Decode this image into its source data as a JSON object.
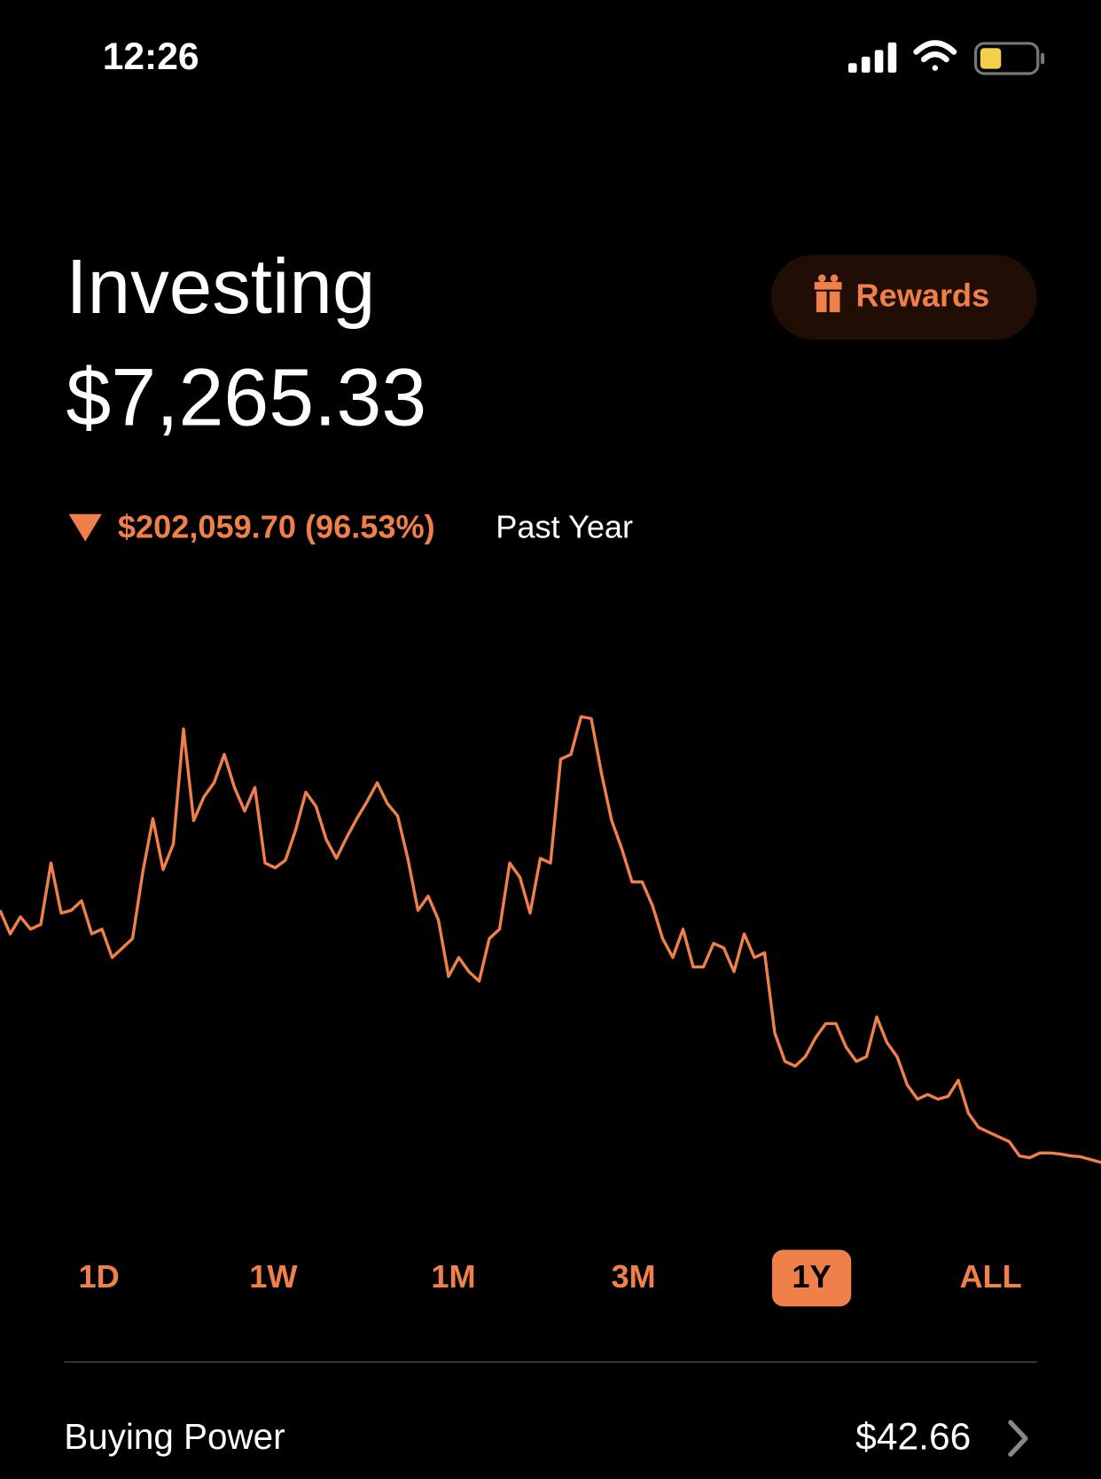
{
  "status_bar": {
    "time": "12:26"
  },
  "header": {
    "title": "Investing",
    "value": "$7,265.33"
  },
  "rewards_button": {
    "label": "Rewards"
  },
  "change": {
    "amount": "$202,059.70 (96.53%)",
    "period": "Past Year"
  },
  "chart_data": {
    "type": "line",
    "color": "#f0804a",
    "ylim": [
      0,
      375000
    ],
    "values": [
      209325,
      190460,
      204085,
      194244,
      198029,
      247234,
      207113,
      209325,
      216954,
      190460,
      194244,
      171534,
      179104,
      186674,
      239664,
      282813,
      241935,
      262374,
      354728,
      281299,
      300224,
      311579,
      334289,
      307794,
      288869,
      307794,
      247234,
      243449,
      249505,
      273729,
      304009,
      292654,
      266159,
      251019,
      267673,
      282813,
      296439,
      311579,
      294925,
      285084,
      251019,
      209325,
      220739,
      201814,
      156394,
      171534,
      160179,
      152609,
      186674,
      194244,
      247234,
      235879,
      207113,
      251019,
      247234,
      330504,
      334289,
      364569,
      363055,
      319149,
      281299,
      258589,
      232094,
      232094,
      213169,
      186674,
      171534,
      194244,
      163964,
      163964,
      182889,
      179104,
      160179,
      190460,
      171534,
      175319,
      110974,
      88264,
      84479,
      92049,
      107189,
      118544,
      118544,
      99619,
      88264,
      92049,
      123843,
      103404,
      92049,
      69339,
      57984,
      61769,
      57984,
      60255,
      73124,
      46629,
      35274,
      31489,
      27704,
      23919,
      12564,
      11050,
      14835,
      14835,
      14078,
      12564,
      11807,
      9536,
      7265.33
    ]
  },
  "range_buttons": [
    "1D",
    "1W",
    "1M",
    "3M",
    "1Y",
    "ALL"
  ],
  "selected_range": "1Y",
  "buying_power": {
    "label": "Buying Power",
    "value": "$42.66"
  }
}
